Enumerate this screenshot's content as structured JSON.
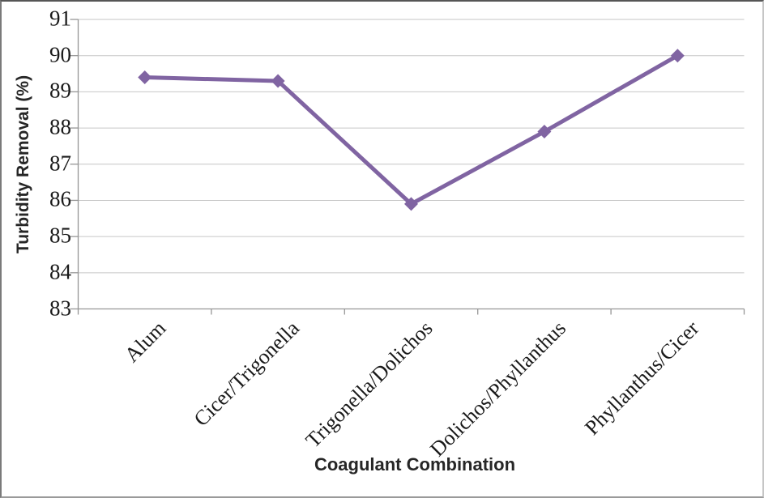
{
  "chart_data": {
    "type": "line",
    "title": "",
    "categories": [
      "Alum",
      "Cicer/Trigonella",
      "Trigonella/Dolichos",
      "Dolichos/Phyllanthus",
      "Phyllanthus/Cicer"
    ],
    "series": [
      {
        "name": "Turbidity Removal",
        "values": [
          89.4,
          89.3,
          85.9,
          87.9,
          90.0
        ]
      }
    ],
    "xlabel": "Coagulant Combination",
    "ylabel": "Turbidity Removal (%)",
    "ylim": [
      83,
      91
    ],
    "yticks": [
      91,
      90,
      89,
      88,
      87,
      86,
      85,
      84,
      83
    ],
    "grid": "horizontal-only",
    "legend": "none",
    "marker": "diamond",
    "colors": {
      "line": "#8064A2",
      "marker": "#8064A2",
      "gridline": "#c6c6c6",
      "axis": "#969696",
      "text": "#1a1a1a"
    }
  }
}
